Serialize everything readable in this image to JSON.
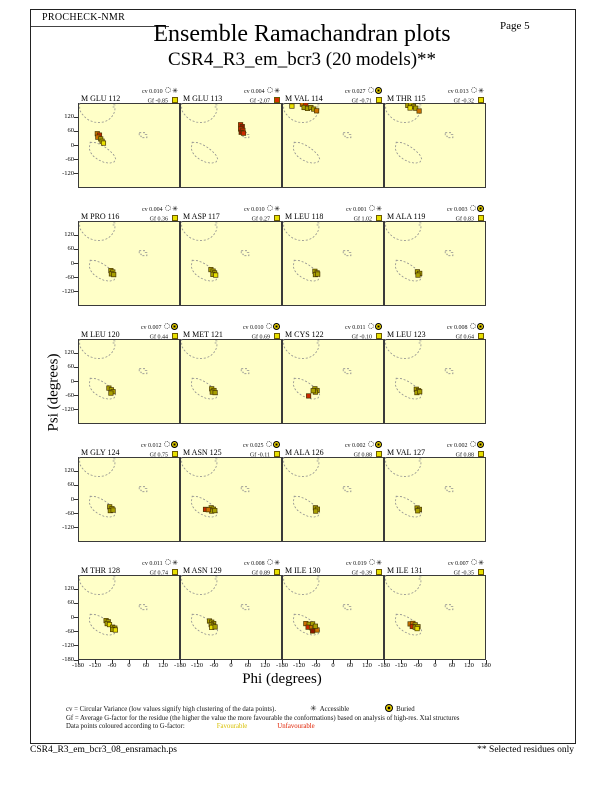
{
  "header": {
    "app_label": "PROCHECK-NMR",
    "page_label": "Page 5",
    "title": "Ensemble Ramachandran plots",
    "subtitle": "CSR4_R3_em_bcr3 (20 models)**"
  },
  "legend": {
    "cv_line": "cv = Circular Variance (low values signify high clustering of the data points).",
    "accessible_label": "Accessible",
    "buried_label": "Buried",
    "gf_line": "Gf = Average G-factor for the residue (the higher the value the more favourable the conformations) based on analysis of high-res. Xtal structures",
    "colour_line": "Data points coloured according to G-factor:",
    "favourable_label": "Favourable",
    "unfavourable_label": "Unfavourable"
  },
  "footer": {
    "filename": "CSR4_R3_em_bcr3_08_ensramach.ps",
    "note": "** Selected residues only"
  },
  "colors": {
    "plot_bg": "#ffffc8",
    "favourable_square": "#e8e000",
    "unfavourable_square": "#d83000",
    "favourable_text": "#d8c000",
    "unfavourable_text": "#e02000",
    "point_olive": "#a8a000",
    "point_yellow": "#e8e000",
    "point_orange": "#cc7000",
    "point_red": "#cc2800",
    "point_darkred": "#8e1800"
  },
  "chart_data": {
    "type": "scatter",
    "title": "Ensemble Ramachandran plots",
    "subtitle": "CSR4_R3_em_bcr3 (20 models)**",
    "xlabel": "Phi (degrees)",
    "ylabel": "Psi (degrees)",
    "xlim": [
      -180,
      180
    ],
    "ylim": [
      -180,
      180
    ],
    "xticks": [
      -180,
      -120,
      -60,
      0,
      60,
      120,
      180
    ],
    "yticks": [
      120,
      60,
      0,
      -60,
      -120,
      -180
    ],
    "grid": {
      "rows": 5,
      "cols": 4
    },
    "cv_label": "cv",
    "gf_label": "Gf",
    "regions": {
      "beta": [
        [
          -174,
          180
        ],
        [
          -174,
          150
        ],
        [
          -166,
          134
        ],
        [
          -154,
          118
        ],
        [
          -140,
          106
        ],
        [
          -122,
          99
        ],
        [
          -104,
          97
        ],
        [
          -88,
          100
        ],
        [
          -74,
          107
        ],
        [
          -63,
          118
        ],
        [
          -55,
          131
        ],
        [
          -50,
          147
        ],
        [
          -49,
          163
        ],
        [
          -56,
          163
        ],
        [
          -56,
          172
        ],
        [
          -49,
          172
        ],
        [
          -49,
          180
        ]
      ],
      "alpha": [
        [
          -137,
          14
        ],
        [
          -118,
          12
        ],
        [
          -100,
          4
        ],
        [
          -83,
          -8
        ],
        [
          -66,
          -24
        ],
        [
          -53,
          -41
        ],
        [
          -47,
          -57
        ],
        [
          -53,
          -70
        ],
        [
          -69,
          -75
        ],
        [
          -89,
          -71
        ],
        [
          -109,
          -60
        ],
        [
          -126,
          -45
        ],
        [
          -136,
          -29
        ],
        [
          -140,
          -13
        ]
      ],
      "lalpha": [
        [
          36,
          54
        ],
        [
          57,
          54
        ],
        [
          57,
          47
        ],
        [
          63,
          47
        ],
        [
          63,
          33
        ],
        [
          43,
          33
        ],
        [
          43,
          40
        ],
        [
          36,
          40
        ]
      ]
    },
    "plots": [
      {
        "residue": "M GLU 112",
        "cv": "0.010",
        "access": "accessible",
        "gf": "-0.85",
        "gf_class": "favourable",
        "points": [
          [
            -112,
            50,
            "orange"
          ],
          [
            -104,
            44,
            "red"
          ],
          [
            -110,
            35,
            "orange"
          ],
          [
            -100,
            28,
            "olive"
          ],
          [
            -95,
            18,
            "olive"
          ],
          [
            -90,
            10,
            "yellow"
          ]
        ]
      },
      {
        "residue": "M GLU 113",
        "cv": "0.004",
        "access": "accessible",
        "gf": "-2.07",
        "gf_class": "unfavourable",
        "points": [
          [
            34,
            88,
            "red"
          ],
          [
            40,
            80,
            "darkred"
          ],
          [
            34,
            70,
            "red"
          ],
          [
            42,
            64,
            "red"
          ],
          [
            36,
            56,
            "darkred"
          ],
          [
            44,
            52,
            "red"
          ]
        ]
      },
      {
        "residue": "M VAL 114",
        "cv": "0.027",
        "access": "buried",
        "gf": "-0.71",
        "gf_class": "favourable",
        "points": [
          [
            -145,
            167,
            "yellow"
          ],
          [
            -108,
            175,
            "orange"
          ],
          [
            -96,
            171,
            "red"
          ],
          [
            -102,
            161,
            "olive"
          ],
          [
            -90,
            157,
            "olive"
          ],
          [
            -78,
            161,
            "olive"
          ],
          [
            -68,
            154,
            "olive"
          ],
          [
            -58,
            147,
            "orange"
          ]
        ]
      },
      {
        "residue": "M THR 115",
        "cv": "0.013",
        "access": "accessible",
        "gf": "-0.32",
        "gf_class": "favourable",
        "points": [
          [
            -96,
            170,
            "olive"
          ],
          [
            -85,
            173,
            "olive"
          ],
          [
            -76,
            166,
            "olive"
          ],
          [
            -88,
            159,
            "yellow"
          ],
          [
            -68,
            158,
            "olive"
          ],
          [
            -56,
            146,
            "orange"
          ]
        ]
      },
      {
        "residue": "M PRO 116",
        "cv": "0.004",
        "access": "accessible",
        "gf": "0.36",
        "gf_class": "favourable",
        "points": [
          [
            -64,
            -30,
            "olive"
          ],
          [
            -57,
            -36,
            "olive"
          ],
          [
            -62,
            -44,
            "olive"
          ],
          [
            -54,
            -47,
            "olive"
          ]
        ]
      },
      {
        "residue": "M ASP 117",
        "cv": "0.010",
        "access": "accessible",
        "gf": "0.27",
        "gf_class": "favourable",
        "points": [
          [
            -71,
            -26,
            "olive"
          ],
          [
            -63,
            -32,
            "olive"
          ],
          [
            -58,
            -40,
            "olive"
          ],
          [
            -64,
            -46,
            "olive"
          ],
          [
            -54,
            -49,
            "yellow"
          ]
        ]
      },
      {
        "residue": "M LEU 118",
        "cv": "0.001",
        "access": "accessible",
        "gf": "1.02",
        "gf_class": "favourable",
        "points": [
          [
            -64,
            -33,
            "olive"
          ],
          [
            -56,
            -40,
            "olive"
          ],
          [
            -62,
            -47,
            "olive"
          ],
          [
            -54,
            -45,
            "olive"
          ]
        ]
      },
      {
        "residue": "M ALA 119",
        "cv": "0.003",
        "access": "buried",
        "gf": "0.83",
        "gf_class": "favourable",
        "points": [
          [
            -62,
            -35,
            "olive"
          ],
          [
            -54,
            -42,
            "olive"
          ],
          [
            -60,
            -49,
            "olive"
          ]
        ]
      },
      {
        "residue": "M LEU 120",
        "cv": "0.007",
        "access": "buried",
        "gf": "0.44",
        "gf_class": "favourable",
        "points": [
          [
            -71,
            -28,
            "olive"
          ],
          [
            -62,
            -35,
            "olive"
          ],
          [
            -56,
            -43,
            "olive"
          ],
          [
            -64,
            -49,
            "olive"
          ]
        ]
      },
      {
        "residue": "M MET 121",
        "cv": "0.010",
        "access": "buried",
        "gf": "0.69",
        "gf_class": "favourable",
        "points": [
          [
            -68,
            -31,
            "olive"
          ],
          [
            -60,
            -38,
            "olive"
          ],
          [
            -66,
            -45,
            "olive"
          ],
          [
            -56,
            -47,
            "olive"
          ]
        ]
      },
      {
        "residue": "M CYS 122",
        "cv": "0.011",
        "access": "buried",
        "gf": "-0.10",
        "gf_class": "favourable",
        "points": [
          [
            -64,
            -31,
            "olive"
          ],
          [
            -56,
            -38,
            "olive"
          ],
          [
            -62,
            -45,
            "olive"
          ],
          [
            -70,
            -39,
            "olive"
          ],
          [
            -86,
            -61,
            "red"
          ]
        ]
      },
      {
        "residue": "M LEU 123",
        "cv": "0.008",
        "access": "buried",
        "gf": "0.64",
        "gf_class": "favourable",
        "points": [
          [
            -66,
            -33,
            "olive"
          ],
          [
            -58,
            -39,
            "olive"
          ],
          [
            -64,
            -47,
            "olive"
          ],
          [
            -54,
            -43,
            "olive"
          ]
        ]
      },
      {
        "residue": "M GLY 124",
        "cv": "0.012",
        "access": "buried",
        "gf": "0.75",
        "gf_class": "favourable",
        "points": [
          [
            -68,
            -31,
            "olive"
          ],
          [
            -60,
            -39,
            "olive"
          ],
          [
            -66,
            -47,
            "olive"
          ],
          [
            -56,
            -45,
            "olive"
          ]
        ]
      },
      {
        "residue": "M ASN 125",
        "cv": "0.025",
        "access": "buried",
        "gf": "-0.11",
        "gf_class": "favourable",
        "points": [
          [
            -70,
            -35,
            "olive"
          ],
          [
            -62,
            -41,
            "olive"
          ],
          [
            -68,
            -49,
            "olive"
          ],
          [
            -90,
            -42,
            "red"
          ],
          [
            -80,
            -43,
            "orange"
          ],
          [
            -57,
            -47,
            "olive"
          ]
        ]
      },
      {
        "residue": "M ALA 126",
        "cv": "0.002",
        "access": "buried",
        "gf": "0.88",
        "gf_class": "favourable",
        "points": [
          [
            -62,
            -35,
            "olive"
          ],
          [
            -55,
            -41,
            "olive"
          ],
          [
            -61,
            -49,
            "olive"
          ]
        ]
      },
      {
        "residue": "M VAL 127",
        "cv": "0.002",
        "access": "buried",
        "gf": "0.88",
        "gf_class": "favourable",
        "points": [
          [
            -63,
            -36,
            "olive"
          ],
          [
            -55,
            -42,
            "olive"
          ],
          [
            -61,
            -48,
            "olive"
          ]
        ]
      },
      {
        "residue": "M THR 128",
        "cv": "0.011",
        "access": "accessible",
        "gf": "0.74",
        "gf_class": "favourable",
        "points": [
          [
            -81,
            -13,
            "olive"
          ],
          [
            -73,
            -18,
            "olive"
          ],
          [
            -77,
            -26,
            "olive"
          ],
          [
            -69,
            -30,
            "yellow"
          ],
          [
            -58,
            -41,
            "olive"
          ],
          [
            -50,
            -45,
            "olive"
          ],
          [
            -58,
            -51,
            "olive"
          ],
          [
            -48,
            -53,
            "yellow"
          ]
        ]
      },
      {
        "residue": "M ASN 129",
        "cv": "0.008",
        "access": "accessible",
        "gf": "0.89",
        "gf_class": "favourable",
        "points": [
          [
            -76,
            -15,
            "olive"
          ],
          [
            -68,
            -20,
            "olive"
          ],
          [
            -61,
            -26,
            "olive"
          ],
          [
            -70,
            -30,
            "olive"
          ],
          [
            -62,
            -36,
            "olive"
          ],
          [
            -68,
            -42,
            "yellow"
          ],
          [
            -56,
            -40,
            "olive"
          ]
        ]
      },
      {
        "residue": "M ILE 130",
        "cv": "0.019",
        "access": "accessible",
        "gf": "-0.39",
        "gf_class": "favourable",
        "points": [
          [
            -96,
            -26,
            "orange"
          ],
          [
            -84,
            -29,
            "olive"
          ],
          [
            -72,
            -27,
            "olive"
          ],
          [
            -88,
            -41,
            "red"
          ],
          [
            -76,
            -43,
            "orange"
          ],
          [
            -64,
            -47,
            "olive"
          ],
          [
            -56,
            -53,
            "orange"
          ],
          [
            -72,
            -57,
            "darkred"
          ],
          [
            -62,
            -37,
            "olive"
          ]
        ]
      },
      {
        "residue": "M ILE 131",
        "cv": "0.007",
        "access": "accessible",
        "gf": "-0.35",
        "gf_class": "favourable",
        "points": [
          [
            -88,
            -27,
            "orange"
          ],
          [
            -78,
            -25,
            "orange"
          ],
          [
            -70,
            -31,
            "olive"
          ],
          [
            -80,
            -38,
            "red"
          ],
          [
            -70,
            -41,
            "olive"
          ],
          [
            -60,
            -39,
            "olive"
          ],
          [
            -63,
            -47,
            "yellow"
          ]
        ]
      }
    ]
  }
}
